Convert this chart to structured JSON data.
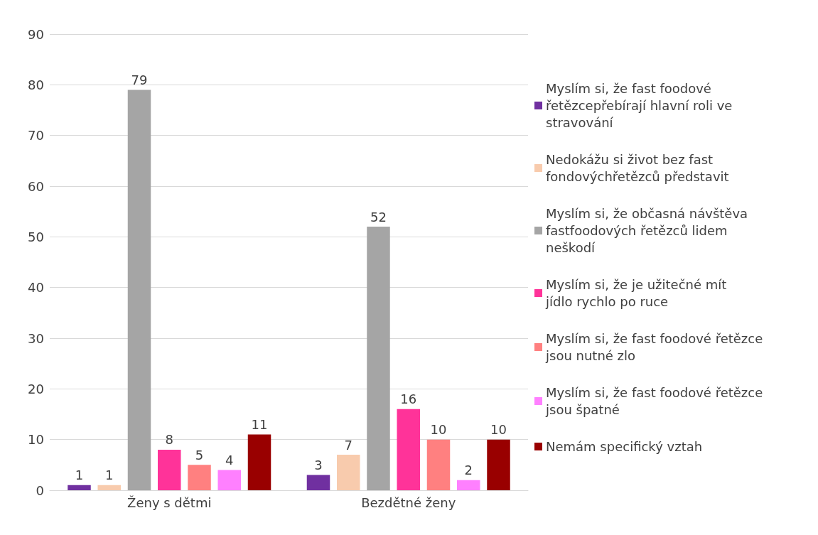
{
  "chart_data": {
    "type": "bar",
    "categories": [
      "Ženy s dětmi",
      "Bezdětné ženy"
    ],
    "series": [
      {
        "name": "Myslím si, že fast foodové řetězcepřebírají hlavní roli ve stravování",
        "color": "#7030a0",
        "values": [
          1,
          3
        ]
      },
      {
        "name": "Nedokážu si život bez fast fondovýchřetězců představit",
        "color": "#f8cbad",
        "values": [
          1,
          7
        ]
      },
      {
        "name": "Myslím si, že občasná návštěva fastfoodových řetězců lidem neškodí",
        "color": "#a5a5a5",
        "values": [
          79,
          52
        ]
      },
      {
        "name": "Myslím si, že je užitečné mít jídlo rychlo po ruce",
        "color": "#ff3399",
        "values": [
          8,
          16
        ]
      },
      {
        "name": "Myslím si, že fast foodové řetězce jsou nutné zlo",
        "color": "#ff8080",
        "values": [
          5,
          10
        ]
      },
      {
        "name": "Myslím si, že fast foodové řetězce jsou špatné",
        "color": "#ff80ff",
        "values": [
          4,
          2
        ]
      },
      {
        "name": "Nemám specifický vztah",
        "color": "#990000",
        "values": [
          11,
          10
        ]
      }
    ],
    "ylim": [
      0,
      90
    ],
    "yticks": [
      0,
      10,
      20,
      30,
      40,
      50,
      60,
      70,
      80,
      90
    ],
    "grid": "y",
    "legend": "right",
    "data_labels": true
  }
}
